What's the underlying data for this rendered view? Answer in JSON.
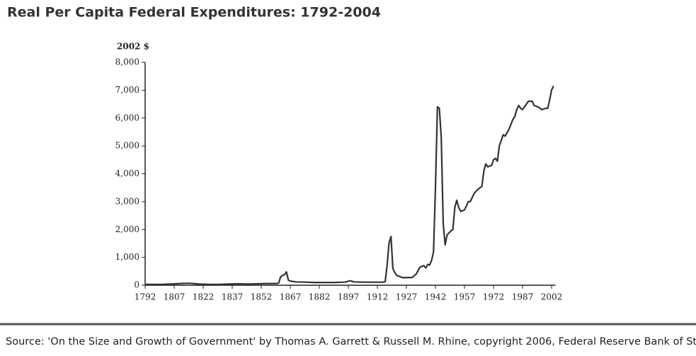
{
  "chart_data": {
    "type": "line",
    "title": "Real Per Capita Federal Expenditures: 1792-2004",
    "y_label": "2002 $",
    "source": "Source: 'On the Size and Growth of Government' by Thomas A. Garrett & Russell M. Rhine, copyright 2006, Federal Reserve Bank of St. Louis.",
    "xlim": [
      1792,
      2004
    ],
    "xticks": [
      1792,
      1807,
      1822,
      1837,
      1852,
      1867,
      1882,
      1897,
      1912,
      1927,
      1942,
      1957,
      1972,
      1987,
      2002
    ],
    "ylim": [
      0,
      8000
    ],
    "yticks": [
      0,
      {
        "value": 1000,
        "label": "1,000"
      },
      {
        "value": 2000,
        "label": "2,000"
      },
      {
        "value": 3000,
        "label": "3,000"
      },
      {
        "value": 4000,
        "label": "4,000"
      },
      {
        "value": 5000,
        "label": "5,000"
      },
      {
        "value": 6000,
        "label": "6,000"
      },
      {
        "value": 7000,
        "label": "7,000"
      },
      {
        "value": 8000,
        "label": "8,000"
      }
    ],
    "color": "#333333",
    "x": [
      1792,
      1800,
      1805,
      1810,
      1815,
      1820,
      1825,
      1830,
      1835,
      1840,
      1845,
      1850,
      1855,
      1860,
      1861,
      1862,
      1863,
      1864,
      1865,
      1866,
      1867,
      1870,
      1875,
      1880,
      1885,
      1890,
      1895,
      1898,
      1900,
      1905,
      1910,
      1915,
      1916,
      1917,
      1918,
      1919,
      1920,
      1921,
      1922,
      1925,
      1930,
      1932,
      1934,
      1936,
      1937,
      1938,
      1939,
      1940,
      1941,
      1942,
      1943,
      1944,
      1945,
      1946,
      1947,
      1948,
      1950,
      1951,
      1952,
      1953,
      1954,
      1955,
      1957,
      1959,
      1960,
      1962,
      1964,
      1966,
      1967,
      1968,
      1969,
      1971,
      1972,
      1973,
      1974,
      1975,
      1976,
      1977,
      1978,
      1980,
      1982,
      1983,
      1984,
      1985,
      1986,
      1987,
      1988,
      1990,
      1992,
      1993,
      1995,
      1997,
      1999,
      2000,
      2001,
      2002,
      2003
    ],
    "values": [
      30,
      30,
      40,
      60,
      70,
      40,
      30,
      30,
      40,
      50,
      40,
      50,
      60,
      60,
      80,
      300,
      350,
      380,
      480,
      180,
      150,
      120,
      110,
      100,
      100,
      100,
      110,
      160,
      120,
      110,
      110,
      110,
      130,
      700,
      1500,
      1750,
      600,
      450,
      350,
      270,
      280,
      400,
      650,
      700,
      620,
      750,
      720,
      900,
      1200,
      3500,
      6400,
      6350,
      5300,
      2200,
      1450,
      1800,
      1950,
      2000,
      2800,
      3050,
      2800,
      2650,
      2700,
      3000,
      3000,
      3300,
      3450,
      3550,
      4100,
      4350,
      4250,
      4300,
      4500,
      4550,
      4450,
      5000,
      5200,
      5400,
      5350,
      5600,
      5950,
      6050,
      6300,
      6450,
      6350,
      6300,
      6400,
      6600,
      6600,
      6450,
      6400,
      6300,
      6350,
      6350,
      6650,
      7000,
      7150
    ]
  }
}
